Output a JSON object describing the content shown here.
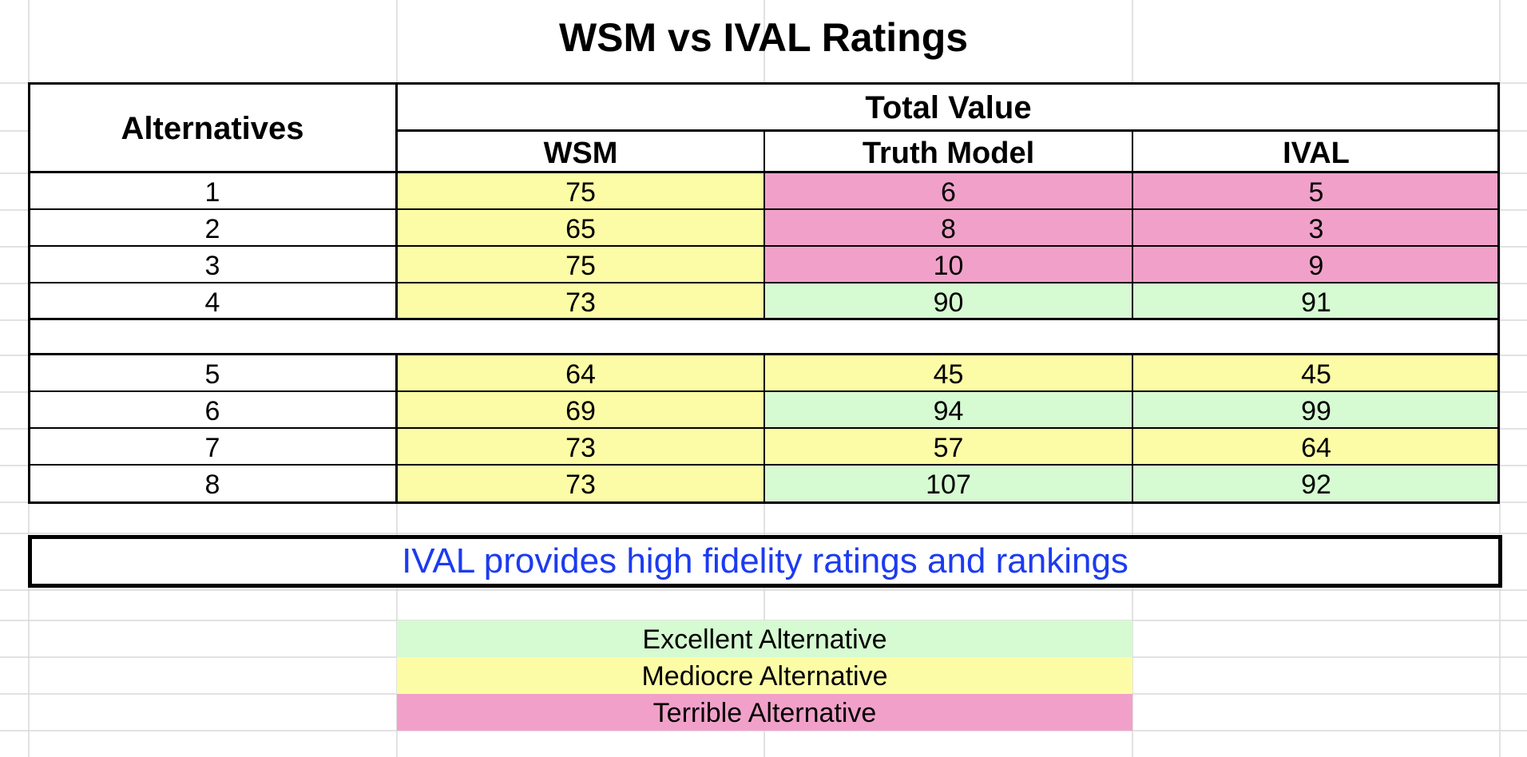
{
  "title": "WSM vs IVAL Ratings",
  "table": {
    "header": {
      "alternatives": "Alternatives",
      "group": "Total Value",
      "columns": [
        "WSM",
        "Truth Model",
        "IVAL"
      ]
    },
    "rows_top": [
      {
        "alt": "1",
        "wsm": "75",
        "truth": "6",
        "ival": "5"
      },
      {
        "alt": "2",
        "wsm": "65",
        "truth": "8",
        "ival": "3"
      },
      {
        "alt": "3",
        "wsm": "75",
        "truth": "10",
        "ival": "9"
      },
      {
        "alt": "4",
        "wsm": "73",
        "truth": "90",
        "ival": "91"
      }
    ],
    "rows_bottom": [
      {
        "alt": "5",
        "wsm": "64",
        "truth": "45",
        "ival": "45"
      },
      {
        "alt": "6",
        "wsm": "69",
        "truth": "94",
        "ival": "99"
      },
      {
        "alt": "7",
        "wsm": "73",
        "truth": "57",
        "ival": "64"
      },
      {
        "alt": "8",
        "wsm": "73",
        "truth": "107",
        "ival": "92"
      }
    ]
  },
  "callout": "IVAL provides high fidelity ratings and rankings",
  "legend": {
    "excellent": "Excellent Alternative",
    "mediocre": "Mediocre Alternative",
    "terrible": "Terrible Alternative"
  },
  "colors": {
    "excellent": "#d6fad2",
    "mediocre": "#fdfca6",
    "terrible": "#f1a1c9",
    "callout_text": "#1c3bf0"
  }
}
